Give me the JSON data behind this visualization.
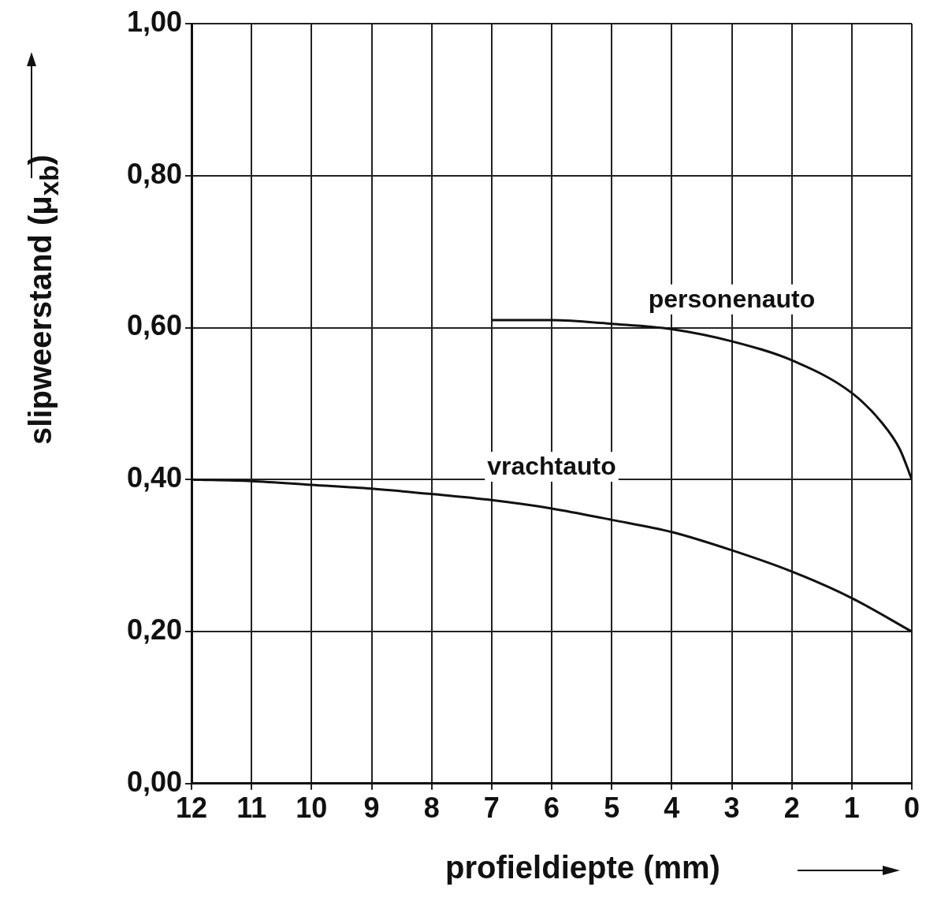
{
  "chart_data": {
    "type": "line",
    "xlabel": "profieldiepte (mm)",
    "ylabel": "slipweerstand (μ$_{xb}$)",
    "series": [
      {
        "name": "personenauto",
        "color": "#111111",
        "x": [
          7,
          6,
          5,
          4,
          3,
          2,
          1,
          0.5,
          0.2,
          0
        ],
        "values": [
          0.61,
          0.61,
          0.605,
          0.598,
          0.582,
          0.557,
          0.514,
          0.475,
          0.44,
          0.4
        ]
      },
      {
        "name": "vrachtauto",
        "color": "#111111",
        "x": [
          12,
          11,
          10,
          9,
          8,
          7,
          6,
          5,
          4,
          3,
          2,
          1,
          0
        ],
        "values": [
          0.4,
          0.398,
          0.393,
          0.388,
          0.381,
          0.373,
          0.362,
          0.347,
          0.331,
          0.307,
          0.279,
          0.244,
          0.2
        ]
      }
    ],
    "xlim": [
      12,
      0
    ],
    "xticks": [
      12,
      11,
      10,
      9,
      8,
      7,
      6,
      5,
      4,
      3,
      2,
      1,
      0
    ],
    "ylim": [
      0,
      1
    ],
    "yticks": [
      {
        "value": 0,
        "label": "0,00"
      },
      {
        "value": 0.2,
        "label": "0,20"
      },
      {
        "value": 0.4,
        "label": "0,40"
      },
      {
        "value": 0.6,
        "label": "0,60"
      },
      {
        "value": 0.8,
        "label": "0,80"
      },
      {
        "value": 1,
        "label": "1,00"
      }
    ],
    "grid": true,
    "legend": false,
    "marker": "none",
    "line_style": "solid"
  }
}
